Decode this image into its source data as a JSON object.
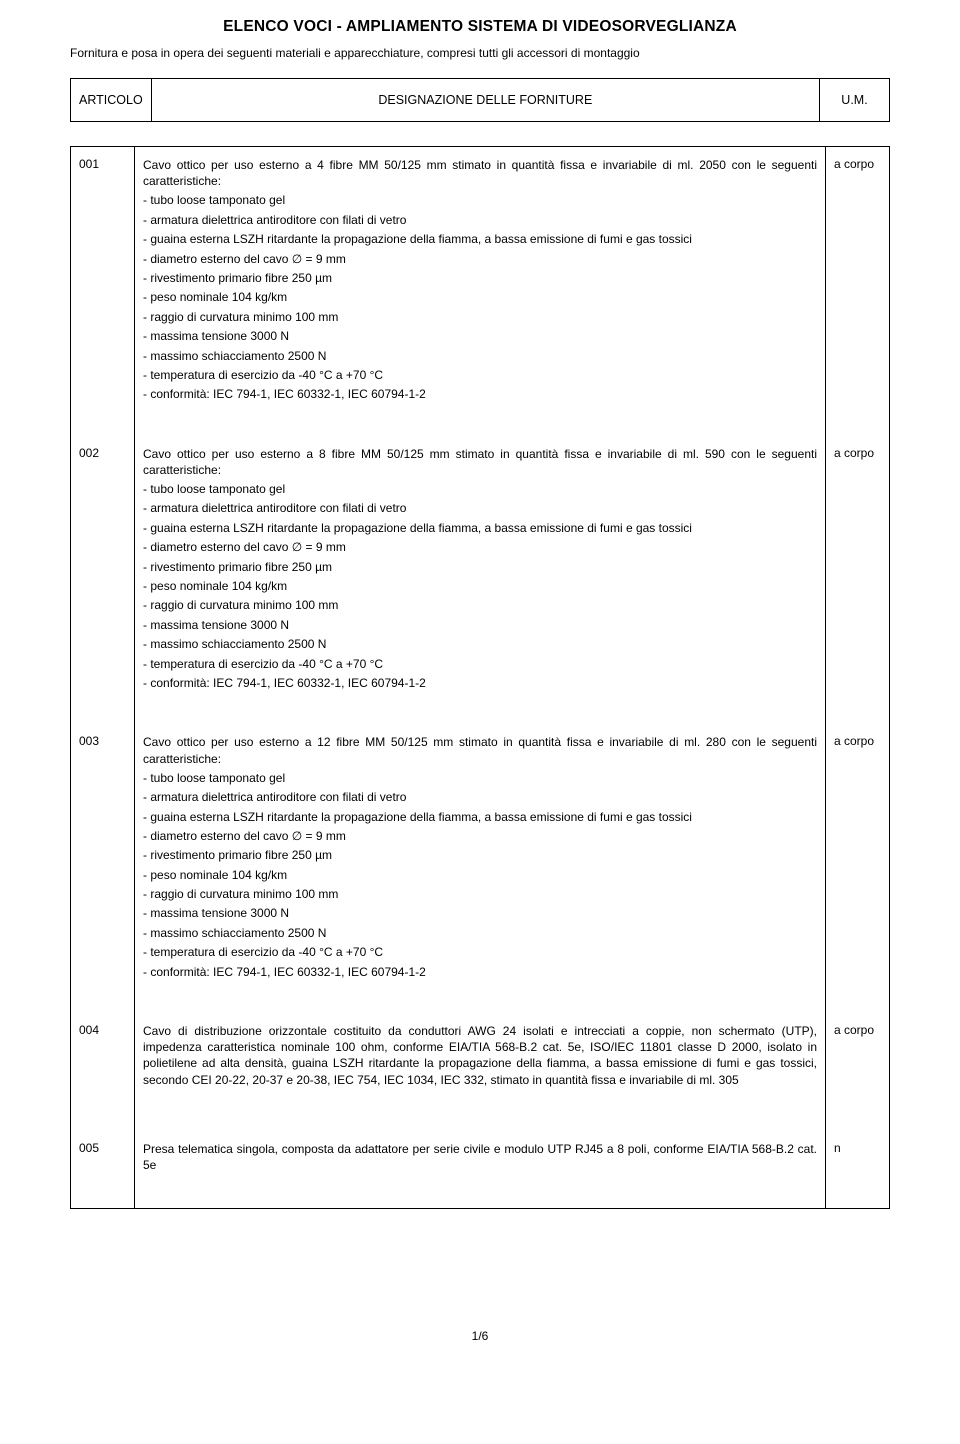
{
  "title": "ELENCO VOCI - AMPLIAMENTO SISTEMA DI VIDEOSORVEGLIANZA",
  "subtitle": "Fornitura e posa in opera dei seguenti materiali e apparecchiature, compresi tutti gli accessori di montaggio",
  "header": {
    "articolo": "ARTICOLO",
    "designazione": "DESIGNAZIONE DELLE FORNITURE",
    "um": "U.M."
  },
  "common_specs": [
    "tubo loose tamponato gel",
    "armatura dielettrica antiroditore con filati di vetro",
    "guaina esterna LSZH ritardante la propagazione della fiamma, a bassa emissione di fumi e gas tossici",
    "diametro esterno del cavo ∅ = 9 mm",
    "rivestimento primario fibre 250 µm",
    "peso nominale 104 kg/km",
    "raggio di curvatura minimo 100 mm",
    "massima tensione 3000 N",
    "massimo schiacciamento 2500 N",
    "temperatura di esercizio da -40 °C a +70 °C",
    "conformità: IEC 794-1, IEC 60332-1, IEC 60794-1-2"
  ],
  "rows": [
    {
      "art": "001",
      "intro": "Cavo ottico per uso esterno a 4 fibre MM 50/125 mm stimato in quantità fissa e invariabile di ml. 2050 con le seguenti caratteristiche:",
      "use_common_specs": true,
      "um": "a corpo"
    },
    {
      "art": "002",
      "intro": "Cavo ottico per uso esterno a 8 fibre MM 50/125 mm stimato in quantità fissa e invariabile di ml. 590 con le seguenti caratteristiche:",
      "use_common_specs": true,
      "um": "a corpo"
    },
    {
      "art": "003",
      "intro": "Cavo ottico per uso esterno a 12 fibre MM 50/125 mm stimato in quantità fissa e invariabile di ml. 280 con le seguenti caratteristiche:",
      "use_common_specs": true,
      "um": "a corpo"
    },
    {
      "art": "004",
      "intro": "Cavo di distribuzione orizzontale costituito da conduttori AWG 24 isolati e intrecciati a coppie, non schermato (UTP), impedenza caratteristica nominale 100 ohm, conforme EIA/TIA 568-B.2 cat. 5e, ISO/IEC 11801 classe D 2000, isolato in polietilene ad alta densità, guaina LSZH ritardante la propagazione della fiamma, a bassa emissione di fumi e gas tossici, secondo CEI 20-22, 20-37 e 20-38, IEC 754, IEC 1034, IEC 332, stimato in quantità fissa e invariabile di ml. 305",
      "use_common_specs": false,
      "um": "a corpo"
    },
    {
      "art": "005",
      "intro": "Presa telematica singola, composta da adattatore per serie civile e modulo UTP RJ45 a 8 poli, conforme EIA/TIA 568-B.2 cat. 5e",
      "use_common_specs": false,
      "um": "n"
    }
  ],
  "footer": "1/6"
}
